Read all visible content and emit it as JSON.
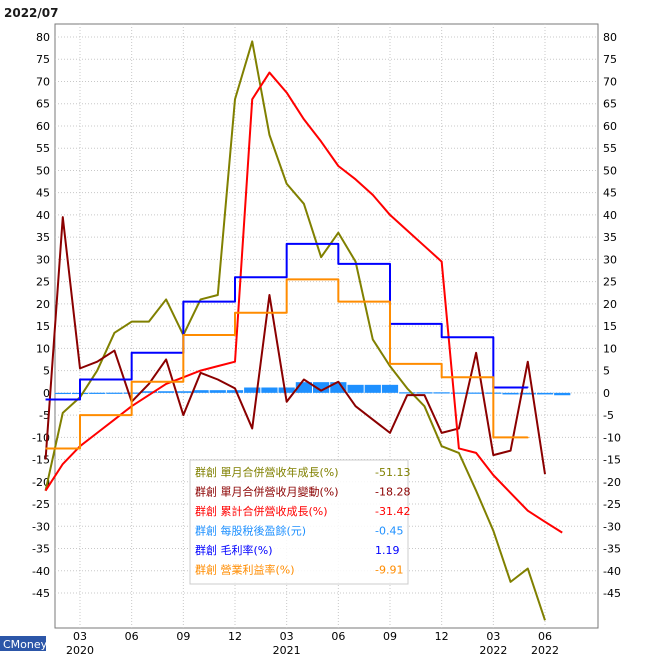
{
  "chart_data": {
    "type": "line",
    "date_label": "2022/07",
    "brand": "CMoney",
    "ylim": [
      -55,
      82
    ],
    "y_ticks": [
      80,
      75,
      70,
      65,
      60,
      55,
      50,
      45,
      40,
      35,
      30,
      25,
      20,
      15,
      10,
      5,
      0,
      -5,
      -10,
      -15,
      -20,
      -25,
      -30,
      -35,
      -40,
      -45
    ],
    "x_ticks": [
      {
        "month": "03",
        "year": "2020",
        "index": 2
      },
      {
        "month": "06",
        "year": "",
        "index": 5
      },
      {
        "month": "09",
        "year": "",
        "index": 8
      },
      {
        "month": "12",
        "year": "",
        "index": 11
      },
      {
        "month": "03",
        "year": "2021",
        "index": 14
      },
      {
        "month": "06",
        "year": "",
        "index": 17
      },
      {
        "month": "09",
        "year": "",
        "index": 20
      },
      {
        "month": "12",
        "year": "",
        "index": 23
      },
      {
        "month": "03",
        "year": "2022",
        "index": 26
      },
      {
        "month": "06",
        "year": "2022",
        "index": 29
      }
    ],
    "x_count": 31,
    "series": [
      {
        "name": "群創 單月合併營收年成長(%)",
        "short": "單月合併營收年成長(%)",
        "last_value": "-51.13",
        "color": "#808000",
        "style": "line",
        "values": [
          -22,
          -4.5,
          -1,
          5,
          13.5,
          16,
          16,
          21,
          13,
          21,
          22,
          66,
          79,
          58,
          47,
          42.5,
          30.5,
          36,
          29.5,
          12,
          6,
          1,
          -3,
          -12,
          -13.5,
          -22,
          -31,
          -42.5,
          -39.5,
          -51.13
        ]
      },
      {
        "name": "群創 單月合併營收月變動(%)",
        "short": "單月合併營收月變動(%)",
        "last_value": "-18.28",
        "color": "#8b0000",
        "style": "line",
        "values": [
          -15,
          39.5,
          5.5,
          7,
          9.5,
          -2,
          2,
          7.5,
          -5,
          4.5,
          3,
          1,
          -8,
          22,
          -2,
          3,
          0.5,
          2.5,
          -3,
          -6,
          -9,
          -0.5,
          -0.5,
          -9,
          -8,
          9,
          -14,
          -13,
          7,
          -18.28
        ]
      },
      {
        "name": "群創 累計合併營收成長(%)",
        "short": "累計合併營收成長(%)",
        "last_value": "-31.42",
        "color": "#ff0000",
        "style": "line",
        "values": [
          -22,
          -16,
          -12,
          -9,
          -6,
          -3,
          -0.5,
          2,
          3.5,
          5,
          6,
          7,
          66,
          72,
          67.5,
          61.5,
          56.5,
          51,
          48,
          44.5,
          40,
          36.5,
          33,
          29.5,
          -12.5,
          -13.5,
          -18.5,
          -22.5,
          -26.5,
          -29,
          -31.42
        ]
      },
      {
        "name": "群創 每股稅後盈餘(元)",
        "short": "每股稅後盈餘(元)",
        "last_value": "-0.45",
        "color": "#1e90ff",
        "style": "bar",
        "values": [
          -0.05,
          -0.05,
          0.02,
          0.03,
          0.05,
          0.3,
          0.3,
          0.3,
          0.5,
          0.5,
          0.5,
          1.0,
          1.0,
          1.0,
          2.0,
          2.0,
          2.0,
          1.5,
          1.5,
          1.5,
          0.1,
          0.1,
          0.1,
          0.05,
          0.05,
          0.05,
          -0.3,
          -0.3,
          -0.3,
          -0.45
        ]
      },
      {
        "name": "群創 毛利率(%)",
        "short": "毛利率(%)",
        "last_value": "1.19",
        "color": "#0000ff",
        "style": "step",
        "values": [
          -1.5,
          -1.5,
          3,
          3,
          3,
          9,
          9,
          9,
          20.5,
          20.5,
          20.5,
          26,
          26,
          26,
          33.5,
          33.5,
          33.5,
          29,
          29,
          29,
          15.5,
          15.5,
          15.5,
          12.5,
          12.5,
          12.5,
          1.2,
          1.2,
          1.19
        ]
      },
      {
        "name": "群創 營業利益率(%)",
        "short": "營業利益率(%)",
        "last_value": "-9.91",
        "color": "#ff8c00",
        "style": "step",
        "values": [
          -12.5,
          -12.5,
          -5,
          -5,
          -5,
          2.5,
          2.5,
          2.5,
          13,
          13,
          13,
          18,
          18,
          18,
          25.5,
          25.5,
          25.5,
          20.5,
          20.5,
          20.5,
          6.5,
          6.5,
          6.5,
          3.5,
          3.5,
          3.5,
          -10,
          -10,
          -9.91
        ]
      }
    ]
  }
}
